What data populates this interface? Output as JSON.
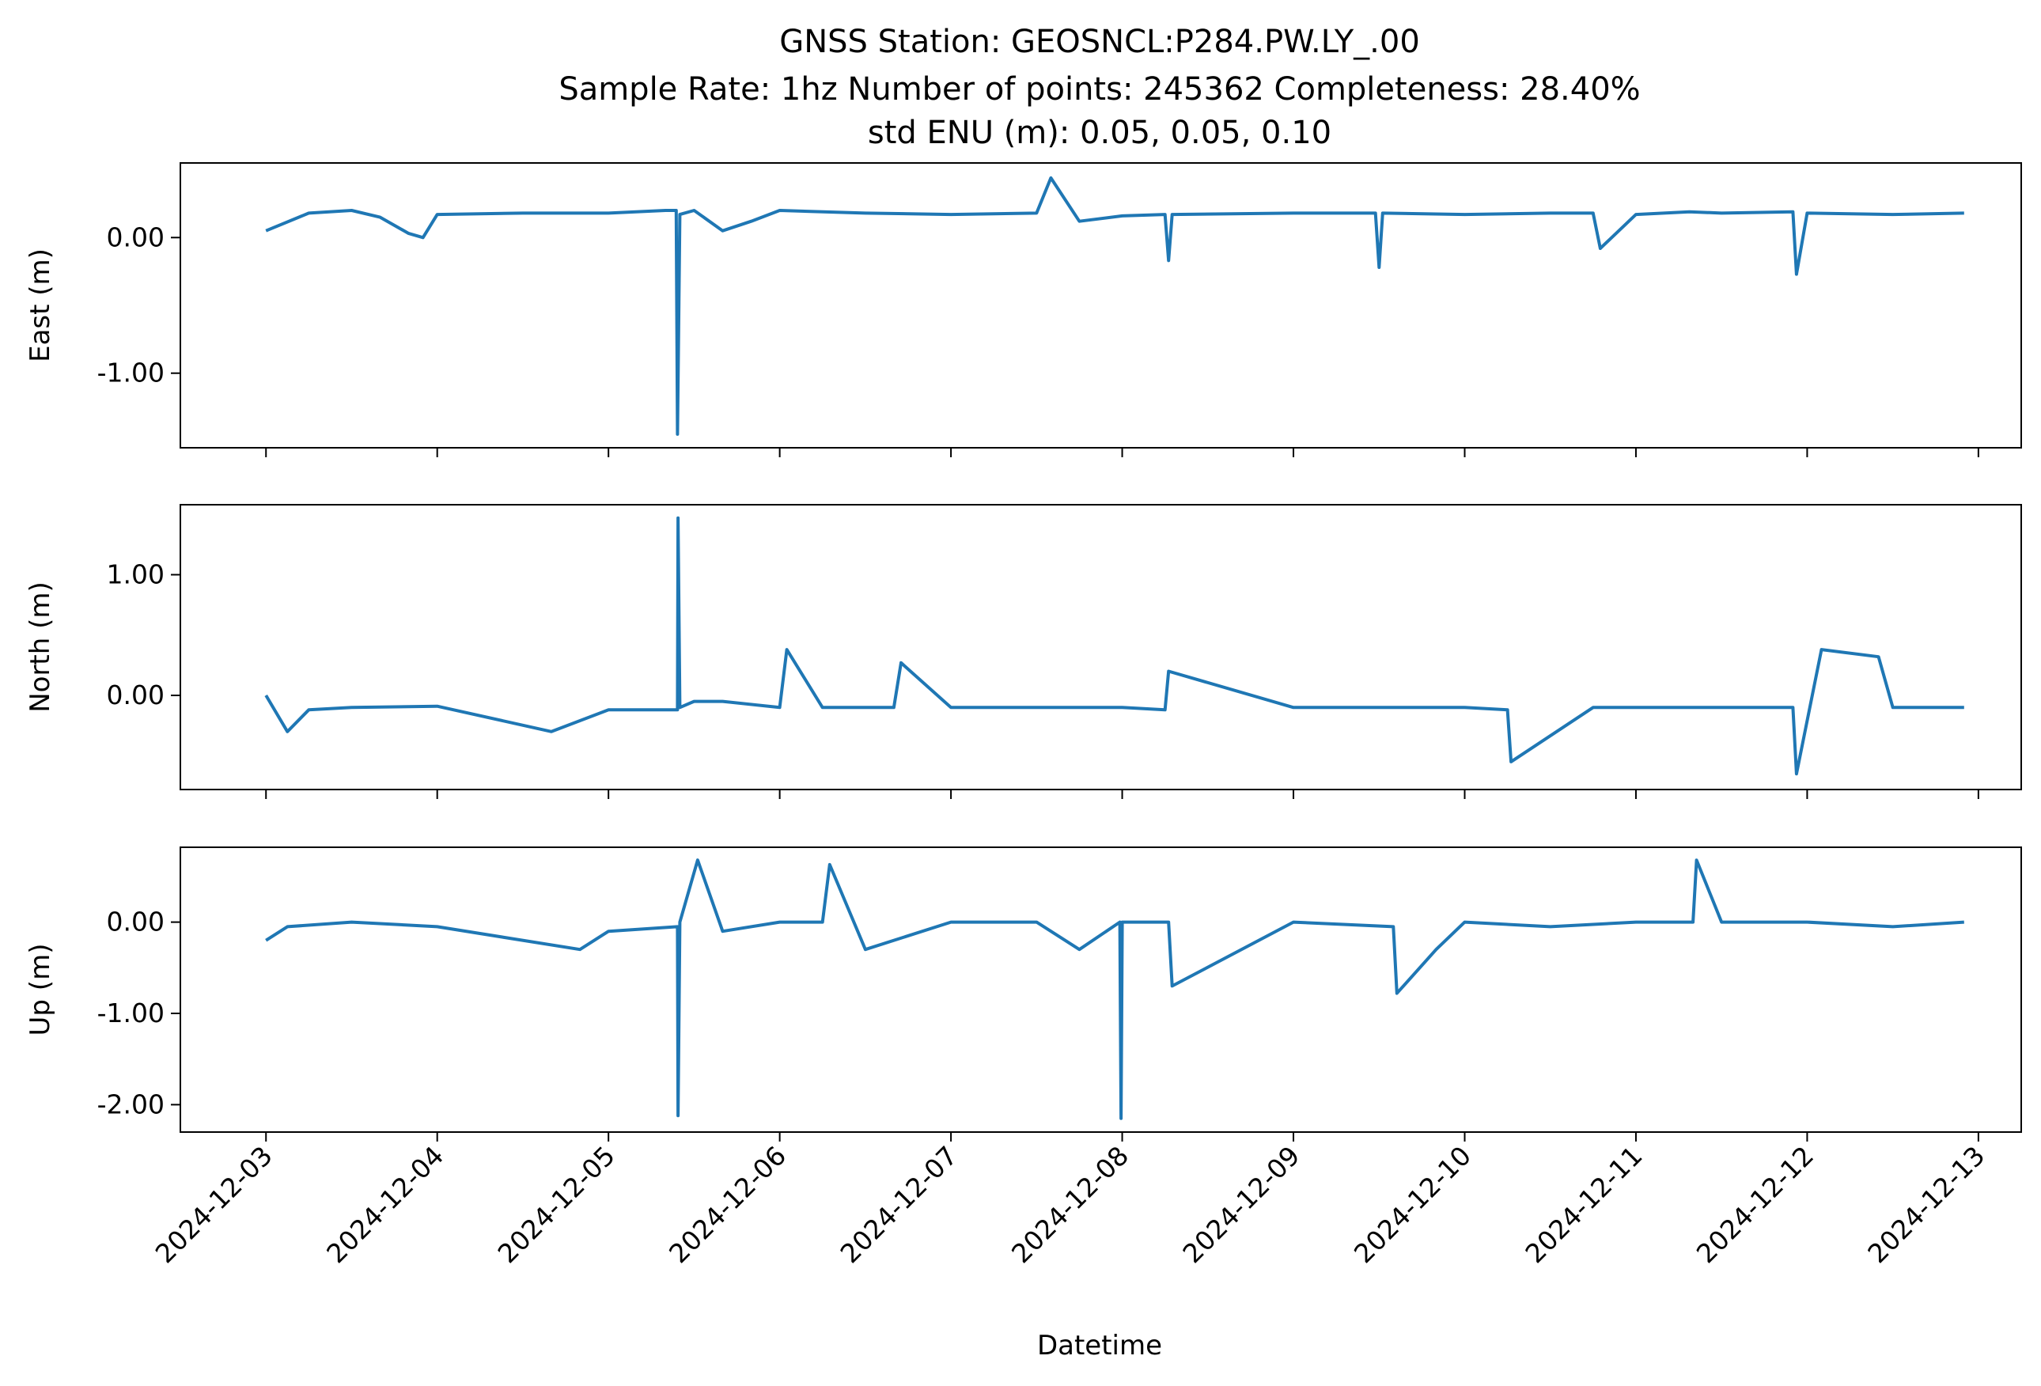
{
  "figure": {
    "title_lines": [
      "GNSS Station: GEOSNCL:P284.PW.LY_.00",
      "Sample Rate: 1hz   Number of points: 245362    Completeness:  28.40%",
      "std ENU (m):  0.05, 0.05, 0.10"
    ],
    "xlabel": "Datetime"
  },
  "chart_data": {
    "type": "line",
    "title": "GNSS Station: GEOSNCL:P284.PW.LY_.00",
    "subtitle": "Sample Rate: 1hz   Number of points: 245362    Completeness:  28.40%",
    "note": "std ENU (m):  0.05, 0.05, 0.10",
    "xlabel": "Datetime",
    "x_tick_labels": [
      "2024-12-03",
      "2024-12-04",
      "2024-12-05",
      "2024-12-06",
      "2024-12-07",
      "2024-12-08",
      "2024-12-09",
      "2024-12-10",
      "2024-12-11",
      "2024-12-12",
      "2024-12-13"
    ],
    "xlim": [
      "2024-12-02T12:00",
      "2024-12-13T06:00"
    ],
    "line_color": "#1f77b4",
    "grid": false,
    "panels": [
      {
        "name": "east",
        "ylabel": "East (m)",
        "ylim": [
          -1.55,
          0.55
        ],
        "y_ticks": [
          0.0,
          -1.0
        ],
        "y_tick_labels": [
          "0.00",
          "-1.00"
        ],
        "x": [
          "2024-12-03T00:00",
          "2024-12-03T06:00",
          "2024-12-03T12:00",
          "2024-12-03T16:00",
          "2024-12-03T20:00",
          "2024-12-03T22:00",
          "2024-12-04T00:00",
          "2024-12-04T12:00",
          "2024-12-05T00:00",
          "2024-12-05T08:00",
          "2024-12-05T09:30",
          "2024-12-05T09:40",
          "2024-12-05T10:00",
          "2024-12-05T12:00",
          "2024-12-05T16:00",
          "2024-12-05T20:00",
          "2024-12-06T00:00",
          "2024-12-06T12:00",
          "2024-12-07T00:00",
          "2024-12-07T12:00",
          "2024-12-07T14:00",
          "2024-12-07T18:00",
          "2024-12-08T00:00",
          "2024-12-08T06:00",
          "2024-12-08T06:30",
          "2024-12-08T07:00",
          "2024-12-09T00:00",
          "2024-12-09T11:30",
          "2024-12-09T12:00",
          "2024-12-09T12:30",
          "2024-12-10T00:00",
          "2024-12-10T12:00",
          "2024-12-10T18:00",
          "2024-12-10T19:00",
          "2024-12-11T00:00",
          "2024-12-11T07:30",
          "2024-12-11T12:00",
          "2024-12-11T22:00",
          "2024-12-11T22:30",
          "2024-12-12T00:00",
          "2024-12-12T12:00",
          "2024-12-12T22:00"
        ],
        "y": [
          0.05,
          0.18,
          0.2,
          0.15,
          0.03,
          0.0,
          0.17,
          0.18,
          0.18,
          0.2,
          0.2,
          -1.45,
          0.17,
          0.2,
          0.05,
          0.12,
          0.2,
          0.18,
          0.17,
          0.18,
          0.44,
          0.12,
          0.16,
          0.17,
          -0.17,
          0.17,
          0.18,
          0.18,
          -0.22,
          0.18,
          0.17,
          0.18,
          0.18,
          -0.08,
          0.17,
          0.19,
          0.18,
          0.19,
          -0.27,
          0.18,
          0.17,
          0.18
        ]
      },
      {
        "name": "north",
        "ylabel": "North (m)",
        "ylim": [
          -0.78,
          1.58
        ],
        "y_ticks": [
          1.0,
          0.0
        ],
        "y_tick_labels": [
          "1.00",
          "0.00"
        ],
        "x": [
          "2024-12-03T00:00",
          "2024-12-03T03:00",
          "2024-12-03T06:00",
          "2024-12-03T12:00",
          "2024-12-04T00:00",
          "2024-12-04T16:00",
          "2024-12-05T00:00",
          "2024-12-05T09:40",
          "2024-12-05T09:45",
          "2024-12-05T10:00",
          "2024-12-05T12:00",
          "2024-12-05T16:00",
          "2024-12-06T00:00",
          "2024-12-06T01:00",
          "2024-12-06T06:00",
          "2024-12-06T16:00",
          "2024-12-06T17:00",
          "2024-12-07T00:00",
          "2024-12-07T12:00",
          "2024-12-08T00:00",
          "2024-12-08T06:00",
          "2024-12-08T06:30",
          "2024-12-09T00:00",
          "2024-12-09T12:00",
          "2024-12-10T00:00",
          "2024-12-10T06:00",
          "2024-12-10T06:30",
          "2024-12-10T18:00",
          "2024-12-11T00:00",
          "2024-12-11T12:00",
          "2024-12-11T22:00",
          "2024-12-11T22:30",
          "2024-12-12T02:00",
          "2024-12-12T10:00",
          "2024-12-12T12:00",
          "2024-12-12T22:00"
        ],
        "y": [
          0.0,
          -0.3,
          -0.12,
          -0.1,
          -0.09,
          -0.3,
          -0.12,
          -0.12,
          1.47,
          -0.1,
          -0.05,
          -0.05,
          -0.1,
          0.38,
          -0.1,
          -0.1,
          0.27,
          -0.1,
          -0.1,
          -0.1,
          -0.12,
          0.2,
          -0.1,
          -0.1,
          -0.1,
          -0.12,
          -0.55,
          -0.1,
          -0.1,
          -0.1,
          -0.1,
          -0.65,
          0.38,
          0.32,
          -0.1,
          -0.1
        ]
      },
      {
        "name": "up",
        "ylabel": "Up (m)",
        "ylim": [
          -2.3,
          0.82
        ],
        "y_ticks": [
          0.0,
          -1.0,
          -2.0
        ],
        "y_tick_labels": [
          "0.00",
          "-1.00",
          "-2.00"
        ],
        "x": [
          "2024-12-03T00:00",
          "2024-12-03T03:00",
          "2024-12-03T12:00",
          "2024-12-04T00:00",
          "2024-12-04T20:00",
          "2024-12-05T00:00",
          "2024-12-05T09:40",
          "2024-12-05T09:45",
          "2024-12-05T10:00",
          "2024-12-05T12:30",
          "2024-12-05T16:00",
          "2024-12-06T00:00",
          "2024-12-06T06:00",
          "2024-12-06T07:00",
          "2024-12-06T12:00",
          "2024-12-07T00:00",
          "2024-12-07T12:00",
          "2024-12-07T18:00",
          "2024-12-07T23:40",
          "2024-12-07T23:50",
          "2024-12-08T00:00",
          "2024-12-08T06:30",
          "2024-12-08T07:00",
          "2024-12-09T00:00",
          "2024-12-09T14:00",
          "2024-12-09T14:30",
          "2024-12-09T20:00",
          "2024-12-10T00:00",
          "2024-12-10T12:00",
          "2024-12-11T00:00",
          "2024-12-11T08:00",
          "2024-12-11T08:30",
          "2024-12-11T12:00",
          "2024-12-12T00:00",
          "2024-12-12T12:00",
          "2024-12-12T22:00"
        ],
        "y": [
          -0.2,
          -0.05,
          0.0,
          -0.05,
          -0.3,
          -0.1,
          -0.05,
          -2.12,
          0.0,
          0.68,
          -0.1,
          0.0,
          0.0,
          0.63,
          -0.3,
          0.0,
          0.0,
          -0.3,
          0.0,
          -2.15,
          0.0,
          0.0,
          -0.7,
          0.0,
          -0.05,
          -0.78,
          -0.3,
          0.0,
          -0.05,
          0.0,
          0.0,
          0.68,
          0.0,
          0.0,
          -0.05,
          0.0
        ]
      }
    ]
  }
}
